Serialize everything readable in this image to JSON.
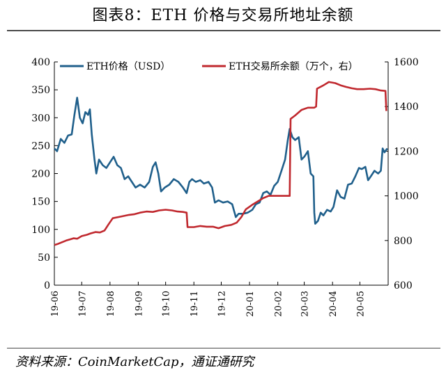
{
  "header": {
    "title": "图表8：ETH 价格与交易所地址余额"
  },
  "footer": {
    "source": "资料来源：CoinMarketCap，通证通研究"
  },
  "colors": {
    "price": "#1f5f8b",
    "balance": "#c0282e"
  },
  "chart_data": {
    "type": "line",
    "legend_position": "top",
    "grid": false,
    "x": {
      "tick_labels": [
        "19-06",
        "19-07",
        "19-08",
        "19-09",
        "19-10",
        "19-11",
        "19-12",
        "20-01",
        "20-02",
        "20-03",
        "20-04",
        "20-05"
      ],
      "range": [
        "2019-06-01",
        "2020-06-01"
      ]
    },
    "y_left": {
      "range": [
        0,
        400
      ],
      "ticks": [
        0,
        50,
        100,
        150,
        200,
        250,
        300,
        350,
        400
      ]
    },
    "y_right": {
      "range": [
        600,
        1600
      ],
      "ticks": [
        600,
        800,
        1000,
        1200,
        1400,
        1600
      ]
    },
    "series": [
      {
        "name": "ETH价格（USD）",
        "axis": "left",
        "color": "#1f5f8b",
        "points": [
          [
            "2019-06-01",
            245
          ],
          [
            "2019-06-04",
            240
          ],
          [
            "2019-06-08",
            262
          ],
          [
            "2019-06-12",
            255
          ],
          [
            "2019-06-16",
            268
          ],
          [
            "2019-06-20",
            270
          ],
          [
            "2019-06-23",
            305
          ],
          [
            "2019-06-26",
            336
          ],
          [
            "2019-06-29",
            300
          ],
          [
            "2019-07-02",
            290
          ],
          [
            "2019-07-05",
            310
          ],
          [
            "2019-07-08",
            305
          ],
          [
            "2019-07-10",
            315
          ],
          [
            "2019-07-12",
            270
          ],
          [
            "2019-07-15",
            225
          ],
          [
            "2019-07-17",
            200
          ],
          [
            "2019-07-20",
            225
          ],
          [
            "2019-07-24",
            215
          ],
          [
            "2019-07-28",
            210
          ],
          [
            "2019-08-01",
            220
          ],
          [
            "2019-08-05",
            230
          ],
          [
            "2019-08-09",
            215
          ],
          [
            "2019-08-13",
            210
          ],
          [
            "2019-08-17",
            190
          ],
          [
            "2019-08-21",
            195
          ],
          [
            "2019-08-25",
            185
          ],
          [
            "2019-08-29",
            175
          ],
          [
            "2019-09-03",
            180
          ],
          [
            "2019-09-08",
            175
          ],
          [
            "2019-09-13",
            185
          ],
          [
            "2019-09-17",
            212
          ],
          [
            "2019-09-20",
            220
          ],
          [
            "2019-09-23",
            200
          ],
          [
            "2019-09-26",
            168
          ],
          [
            "2019-09-30",
            175
          ],
          [
            "2019-10-05",
            180
          ],
          [
            "2019-10-10",
            190
          ],
          [
            "2019-10-15",
            185
          ],
          [
            "2019-10-20",
            175
          ],
          [
            "2019-10-24",
            165
          ],
          [
            "2019-10-27",
            185
          ],
          [
            "2019-10-30",
            190
          ],
          [
            "2019-11-03",
            185
          ],
          [
            "2019-11-08",
            188
          ],
          [
            "2019-11-12",
            182
          ],
          [
            "2019-11-17",
            185
          ],
          [
            "2019-11-21",
            175
          ],
          [
            "2019-11-24",
            148
          ],
          [
            "2019-11-28",
            152
          ],
          [
            "2019-12-03",
            148
          ],
          [
            "2019-12-08",
            150
          ],
          [
            "2019-12-13",
            145
          ],
          [
            "2019-12-17",
            122
          ],
          [
            "2019-12-20",
            128
          ],
          [
            "2019-12-25",
            128
          ],
          [
            "2019-12-30",
            130
          ],
          [
            "2020-01-04",
            135
          ],
          [
            "2020-01-08",
            145
          ],
          [
            "2020-01-12",
            148
          ],
          [
            "2020-01-16",
            165
          ],
          [
            "2020-01-20",
            168
          ],
          [
            "2020-01-24",
            162
          ],
          [
            "2020-01-28",
            178
          ],
          [
            "2020-02-01",
            185
          ],
          [
            "2020-02-05",
            205
          ],
          [
            "2020-02-09",
            225
          ],
          [
            "2020-02-12",
            260
          ],
          [
            "2020-02-14",
            280
          ],
          [
            "2020-02-17",
            265
          ],
          [
            "2020-02-20",
            260
          ],
          [
            "2020-02-24",
            265
          ],
          [
            "2020-02-27",
            225
          ],
          [
            "2020-03-01",
            230
          ],
          [
            "2020-03-05",
            240
          ],
          [
            "2020-03-08",
            200
          ],
          [
            "2020-03-11",
            195
          ],
          [
            "2020-03-12",
            130
          ],
          [
            "2020-03-13",
            110
          ],
          [
            "2020-03-16",
            115
          ],
          [
            "2020-03-19",
            130
          ],
          [
            "2020-03-22",
            125
          ],
          [
            "2020-03-26",
            135
          ],
          [
            "2020-03-30",
            132
          ],
          [
            "2020-04-02",
            140
          ],
          [
            "2020-04-06",
            170
          ],
          [
            "2020-04-10",
            158
          ],
          [
            "2020-04-14",
            155
          ],
          [
            "2020-04-18",
            180
          ],
          [
            "2020-04-22",
            182
          ],
          [
            "2020-04-26",
            195
          ],
          [
            "2020-04-30",
            210
          ],
          [
            "2020-05-03",
            208
          ],
          [
            "2020-05-07",
            212
          ],
          [
            "2020-05-10",
            188
          ],
          [
            "2020-05-13",
            195
          ],
          [
            "2020-05-17",
            205
          ],
          [
            "2020-05-21",
            200
          ],
          [
            "2020-05-24",
            205
          ],
          [
            "2020-05-26",
            245
          ],
          [
            "2020-05-28",
            238
          ],
          [
            "2020-05-31",
            245
          ]
        ]
      },
      {
        "name": "ETH交易所余额（万个，右）",
        "axis": "right",
        "color": "#c0282e",
        "points": [
          [
            "2019-06-01",
            780
          ],
          [
            "2019-06-05",
            785
          ],
          [
            "2019-06-09",
            792
          ],
          [
            "2019-06-14",
            800
          ],
          [
            "2019-06-18",
            805
          ],
          [
            "2019-06-22",
            810
          ],
          [
            "2019-06-26",
            808
          ],
          [
            "2019-07-01",
            820
          ],
          [
            "2019-07-06",
            825
          ],
          [
            "2019-07-11",
            832
          ],
          [
            "2019-07-16",
            838
          ],
          [
            "2019-07-21",
            836
          ],
          [
            "2019-07-26",
            845
          ],
          [
            "2019-07-30",
            870
          ],
          [
            "2019-08-04",
            900
          ],
          [
            "2019-08-10",
            905
          ],
          [
            "2019-08-16",
            910
          ],
          [
            "2019-08-22",
            915
          ],
          [
            "2019-08-28",
            918
          ],
          [
            "2019-09-03",
            925
          ],
          [
            "2019-09-10",
            930
          ],
          [
            "2019-09-17",
            928
          ],
          [
            "2019-09-24",
            935
          ],
          [
            "2019-10-01",
            938
          ],
          [
            "2019-10-08",
            935
          ],
          [
            "2019-10-14",
            930
          ],
          [
            "2019-10-20",
            928
          ],
          [
            "2019-10-24",
            925
          ],
          [
            "2019-10-25",
            860
          ],
          [
            "2019-11-01",
            860
          ],
          [
            "2019-11-08",
            865
          ],
          [
            "2019-11-15",
            862
          ],
          [
            "2019-11-22",
            862
          ],
          [
            "2019-11-28",
            855
          ],
          [
            "2019-12-05",
            865
          ],
          [
            "2019-12-12",
            870
          ],
          [
            "2019-12-18",
            880
          ],
          [
            "2019-12-23",
            905
          ],
          [
            "2019-12-28",
            940
          ],
          [
            "2020-01-04",
            960
          ],
          [
            "2020-01-10",
            975
          ],
          [
            "2020-01-16",
            990
          ],
          [
            "2020-01-22",
            1000
          ],
          [
            "2020-01-28",
            1000
          ],
          [
            "2020-02-04",
            1000
          ],
          [
            "2020-02-10",
            1000
          ],
          [
            "2020-02-14",
            1000
          ],
          [
            "2020-02-15",
            1345
          ],
          [
            "2020-02-20",
            1360
          ],
          [
            "2020-02-27",
            1385
          ],
          [
            "2020-03-05",
            1395
          ],
          [
            "2020-03-12",
            1395
          ],
          [
            "2020-03-14",
            1400
          ],
          [
            "2020-03-15",
            1480
          ],
          [
            "2020-03-22",
            1495
          ],
          [
            "2020-03-28",
            1510
          ],
          [
            "2020-04-04",
            1505
          ],
          [
            "2020-04-10",
            1495
          ],
          [
            "2020-04-16",
            1488
          ],
          [
            "2020-04-22",
            1482
          ],
          [
            "2020-04-28",
            1478
          ],
          [
            "2020-05-05",
            1478
          ],
          [
            "2020-05-12",
            1480
          ],
          [
            "2020-05-18",
            1478
          ],
          [
            "2020-05-24",
            1472
          ],
          [
            "2020-05-29",
            1470
          ],
          [
            "2020-05-30",
            1380
          ]
        ]
      }
    ]
  }
}
